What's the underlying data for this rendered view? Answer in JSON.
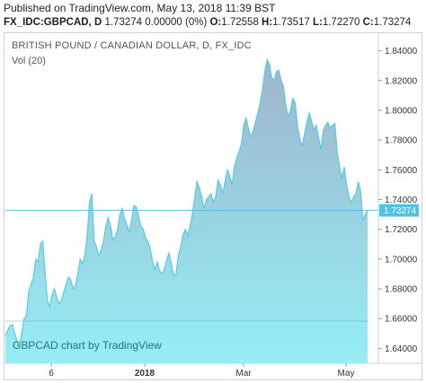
{
  "header": {
    "published": "Published on TradingView.com, May 13, 2018 11:39 BST",
    "symbol": "FX_IDC:GBPCAD, D",
    "quote": "1.73274 0.00000 (0%)",
    "open_label": "O:",
    "open": "1.72558",
    "high_label": "H:",
    "high": "1.73517",
    "low_label": "L:",
    "low": "1.72270",
    "close_label": "C:",
    "close": "1.73274"
  },
  "chart_data": {
    "type": "area",
    "title": "BRITISH POUND / CANADIAN DOLLAR, D, FX_IDC",
    "indicator": "Vol (20)",
    "watermark": "GBPCAD chart by TradingView",
    "last_price": "1.73274",
    "ylim": [
      1.63,
      1.85
    ],
    "y_ticks": [
      "1.64000",
      "1.66000",
      "1.68000",
      "1.70000",
      "1.72000",
      "1.74000",
      "1.76000",
      "1.78000",
      "1.80000",
      "1.82000",
      "1.84000"
    ],
    "x_ticks": [
      {
        "label": "6",
        "bold": false
      },
      {
        "label": "2018",
        "bold": true
      },
      {
        "label": "Mar",
        "bold": false
      },
      {
        "label": "May",
        "bold": false
      }
    ],
    "colors": {
      "line": "#55cde0",
      "fill_top": "#9fb4cc",
      "fill_bottom": "#95eef4",
      "last_price_bg": "#4fc3e6"
    },
    "grid": false,
    "series": [
      {
        "values": [
          1.649,
          1.652,
          1.655,
          1.656,
          1.65,
          1.645,
          1.642,
          1.65,
          1.66,
          1.662,
          1.678,
          1.683,
          1.688,
          1.7,
          1.698,
          1.71,
          1.712,
          1.69,
          1.672,
          1.668,
          1.676,
          1.68,
          1.674,
          1.67,
          1.672,
          1.678,
          1.683,
          1.688,
          1.686,
          1.68,
          1.682,
          1.69,
          1.7,
          1.697,
          1.702,
          1.716,
          1.738,
          1.744,
          1.712,
          1.708,
          1.702,
          1.706,
          1.712,
          1.722,
          1.728,
          1.722,
          1.713,
          1.715,
          1.72,
          1.73,
          1.734,
          1.727,
          1.723,
          1.718,
          1.726,
          1.736,
          1.735,
          1.729,
          1.722,
          1.72,
          1.714,
          1.712,
          1.707,
          1.698,
          1.693,
          1.698,
          1.692,
          1.69,
          1.693,
          1.699,
          1.704,
          1.697,
          1.689,
          1.69,
          1.702,
          1.708,
          1.716,
          1.72,
          1.716,
          1.722,
          1.73,
          1.741,
          1.752,
          1.748,
          1.742,
          1.734,
          1.74,
          1.742,
          1.744,
          1.738,
          1.742,
          1.753,
          1.75,
          1.744,
          1.752,
          1.76,
          1.756,
          1.75,
          1.762,
          1.768,
          1.772,
          1.778,
          1.79,
          1.795,
          1.788,
          1.782,
          1.786,
          1.792,
          1.798,
          1.805,
          1.814,
          1.826,
          1.834,
          1.831,
          1.822,
          1.82,
          1.826,
          1.827,
          1.82,
          1.816,
          1.803,
          1.796,
          1.8,
          1.808,
          1.805,
          1.79,
          1.781,
          1.776,
          1.784,
          1.792,
          1.798,
          1.793,
          1.787,
          1.79,
          1.782,
          1.774,
          1.786,
          1.79,
          1.792,
          1.788,
          1.79,
          1.791,
          1.772,
          1.762,
          1.754,
          1.762,
          1.75,
          1.742,
          1.738,
          1.742,
          1.744,
          1.752,
          1.746,
          1.726,
          1.73,
          1.733
        ]
      }
    ]
  }
}
